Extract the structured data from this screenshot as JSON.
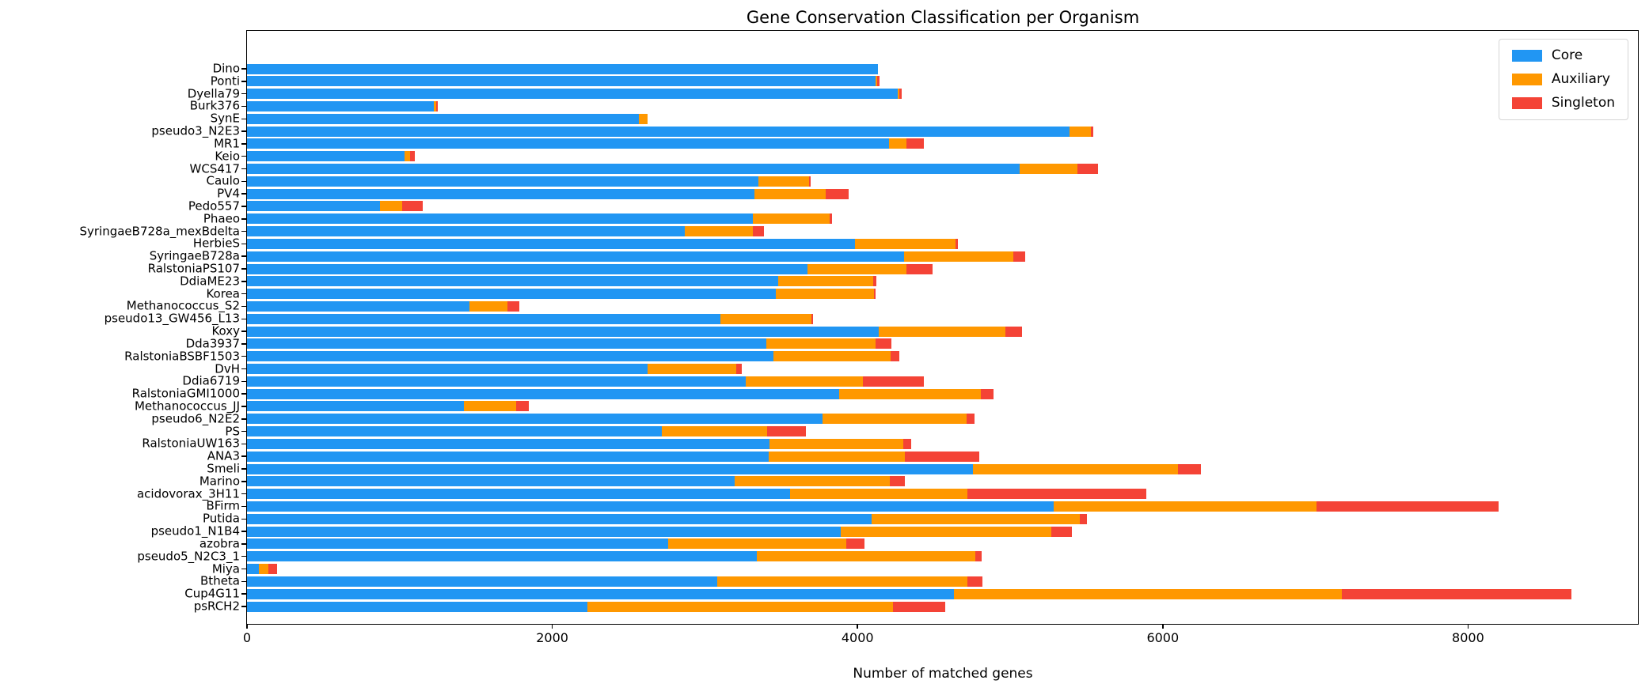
{
  "chart_data": {
    "type": "bar",
    "orientation": "horizontal",
    "stacked": true,
    "title": "Gene Conservation Classification per Organism",
    "xlabel": "Number of matched genes",
    "ylabel": "",
    "grid": false,
    "legend_position": "upper right",
    "xlim": [
      0,
      9113
    ],
    "xticks": [
      0,
      2000,
      4000,
      6000,
      8000
    ],
    "categories": [
      "Dino",
      "Ponti",
      "Dyella79",
      "Burk376",
      "SynE",
      "pseudo3_N2E3",
      "MR1",
      "Keio",
      "WCS417",
      "Caulo",
      "PV4",
      "Pedo557",
      "Phaeo",
      "SyringaeB728a_mexBdelta",
      "HerbieS",
      "SyringaeB728a",
      "RalstoniaPS107",
      "DdiaME23",
      "Korea",
      "Methanococcus_S2",
      "pseudo13_GW456_L13",
      "Koxy",
      "Dda3937",
      "RalstoniaBSBF1503",
      "DvH",
      "Ddia6719",
      "RalstoniaGMI1000",
      "Methanococcus_JJ",
      "pseudo6_N2E2",
      "PS",
      "RalstoniaUW163",
      "ANA3",
      "Smeli",
      "Marino",
      "acidovorax_3H11",
      "BFirm",
      "Putida",
      "pseudo1_N1B4",
      "azobra",
      "pseudo5_N2C3_1",
      "Miya",
      "Btheta",
      "Cup4G11",
      "psRCH2"
    ],
    "series": [
      {
        "name": "Core",
        "color": "#2196F3",
        "values": [
          4135,
          4120,
          4265,
          1225,
          2570,
          5390,
          4205,
          1030,
          5060,
          3350,
          3325,
          870,
          3315,
          2870,
          3985,
          4305,
          3670,
          3480,
          3465,
          1460,
          3100,
          4140,
          3400,
          3450,
          2625,
          3270,
          3880,
          1420,
          3770,
          2720,
          3425,
          3420,
          4755,
          3195,
          3560,
          5285,
          4090,
          3890,
          2760,
          3340,
          80,
          3080,
          4630,
          2230
        ]
      },
      {
        "name": "Auxiliary",
        "color": "#FF9800",
        "values": [
          0,
          10,
          10,
          15,
          55,
          140,
          115,
          40,
          380,
          335,
          465,
          145,
          500,
          445,
          655,
          715,
          650,
          625,
          645,
          245,
          600,
          830,
          720,
          765,
          580,
          765,
          930,
          345,
          945,
          690,
          875,
          890,
          1345,
          1015,
          1160,
          1720,
          1365,
          1380,
          1165,
          1430,
          60,
          1640,
          2545,
          2000
        ]
      },
      {
        "name": "Singleton",
        "color": "#F44336",
        "values": [
          0,
          15,
          15,
          10,
          0,
          15,
          115,
          30,
          135,
          10,
          150,
          135,
          20,
          70,
          20,
          80,
          170,
          20,
          10,
          80,
          10,
          110,
          100,
          60,
          35,
          400,
          80,
          80,
          50,
          250,
          50,
          490,
          150,
          100,
          1170,
          1195,
          50,
          135,
          120,
          45,
          55,
          100,
          1500,
          345
        ]
      }
    ]
  }
}
